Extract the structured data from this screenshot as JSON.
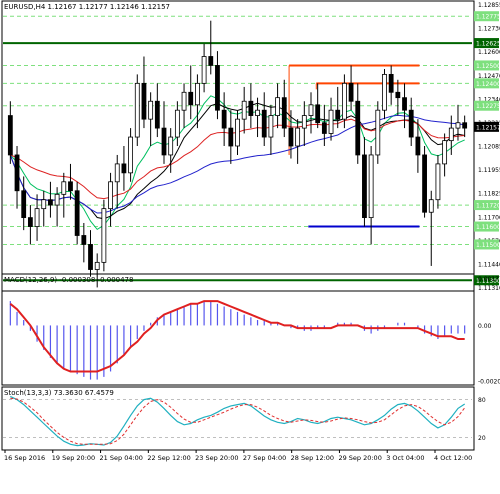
{
  "chart_data": [
    {
      "type": "candlestick",
      "panel": "price",
      "title": "EURUSD,H4  1.12167 1.12177 1.12146 1.12157",
      "x_tick_labels": [
        "16 Sep 2016",
        "19 Sep 20:00",
        "21 Sep 04:00",
        "22 Sep 12:00",
        "23 Sep 20:00",
        "27 Sep 04:00",
        "28 Sep 12:00",
        "29 Sep 20:00",
        "3 Oct 04:00",
        "4 Oct 12:00"
      ],
      "y_tick_labels": [
        "1.12855",
        "1.12730",
        "1.12600",
        "1.12470",
        "1.12340",
        "1.12215",
        "1.12085",
        "1.11955",
        "1.11825",
        "1.11700",
        "1.11570",
        "1.11440",
        "1.11310"
      ],
      "ylim": [
        1.1124,
        1.1286
      ],
      "price_labels": [
        {
          "text": "1.12775",
          "value": 1.12775,
          "color": "#7ee07e"
        },
        {
          "text": "1.12625",
          "value": 1.12625,
          "color": "#006400"
        },
        {
          "text": "1.12500",
          "value": 1.125,
          "color": "#7ee07e"
        },
        {
          "text": "1.12400",
          "value": 1.124,
          "color": "#7ee07e"
        },
        {
          "text": "1.12275",
          "value": 1.12275,
          "color": "#7ee07e"
        },
        {
          "text": "1.12157",
          "value": 1.12157,
          "color": "#000000"
        },
        {
          "text": "1.11720",
          "value": 1.1172,
          "color": "#7ee07e"
        },
        {
          "text": "1.11600",
          "value": 1.116,
          "color": "#7ee07e"
        },
        {
          "text": "1.11500",
          "value": 1.115,
          "color": "#7ee07e"
        },
        {
          "text": "1.11300",
          "value": 1.113,
          "color": "#006400"
        }
      ],
      "horizontal_levels": [
        {
          "value": 1.12625,
          "color": "#006400",
          "style": "solid",
          "x_from": 0,
          "x_to": 1
        },
        {
          "value": 1.113,
          "color": "#006400",
          "style": "solid",
          "x_from": 0,
          "x_to": 1
        },
        {
          "value": 1.12775,
          "color": "#7ee07e",
          "style": "dashed",
          "x_from": 0,
          "x_to": 1
        },
        {
          "value": 1.125,
          "color": "#7ee07e",
          "style": "dashed",
          "x_from": 0,
          "x_to": 1
        },
        {
          "value": 1.124,
          "color": "#7ee07e",
          "style": "dashed",
          "x_from": 0,
          "x_to": 1
        },
        {
          "value": 1.12275,
          "color": "#7ee07e",
          "style": "dashed",
          "x_from": 0,
          "x_to": 1
        },
        {
          "value": 1.1172,
          "color": "#7ee07e",
          "style": "dashed",
          "x_from": 0,
          "x_to": 1
        },
        {
          "value": 1.116,
          "color": "#7ee07e",
          "style": "dashed",
          "x_from": 0,
          "x_to": 1
        },
        {
          "value": 1.115,
          "color": "#7ee07e",
          "style": "dashed",
          "x_from": 0,
          "x_to": 1
        }
      ],
      "rectangle_levels": [
        {
          "top": 1.125,
          "bottom": 1.12,
          "color": "#ff4500",
          "x_from": 0.61,
          "x_to": 0.888
        },
        {
          "top": 1.124,
          "color": "#ff4500",
          "x_from": 0.668,
          "x_to": 0.888
        },
        {
          "value": 1.116,
          "color": "#0000cd",
          "x_from": 0.651,
          "x_to": 0.888
        }
      ],
      "candles": [
        [
          1.1222,
          1.123,
          1.1195,
          1.12
        ],
        [
          1.12,
          1.1205,
          1.117,
          1.118
        ],
        [
          1.118,
          1.1188,
          1.1158,
          1.1165
        ],
        [
          1.1165,
          1.1172,
          1.115,
          1.116
        ],
        [
          1.116,
          1.1178,
          1.1152,
          1.117
        ],
        [
          1.117,
          1.118,
          1.116,
          1.1175
        ],
        [
          1.1175,
          1.1185,
          1.1165,
          1.1172
        ],
        [
          1.1172,
          1.1182,
          1.116,
          1.1178
        ],
        [
          1.1178,
          1.119,
          1.1165,
          1.1185
        ],
        [
          1.1185,
          1.1195,
          1.1175,
          1.118
        ],
        [
          1.118,
          1.1185,
          1.115,
          1.1155
        ],
        [
          1.1155,
          1.1162,
          1.114,
          1.115
        ],
        [
          1.115,
          1.1158,
          1.1132,
          1.1136
        ],
        [
          1.1136,
          1.1145,
          1.1126,
          1.114
        ],
        [
          1.114,
          1.1175,
          1.1135,
          1.117
        ],
        [
          1.117,
          1.119,
          1.116,
          1.1185
        ],
        [
          1.1185,
          1.12,
          1.117,
          1.1195
        ],
        [
          1.1195,
          1.1205,
          1.118,
          1.119
        ],
        [
          1.119,
          1.1215,
          1.1185,
          1.121
        ],
        [
          1.121,
          1.1245,
          1.1205,
          1.124
        ],
        [
          1.124,
          1.1255,
          1.1215,
          1.122
        ],
        [
          1.122,
          1.1235,
          1.1205,
          1.123
        ],
        [
          1.123,
          1.124,
          1.121,
          1.1215
        ],
        [
          1.1215,
          1.123,
          1.1195,
          1.12
        ],
        [
          1.12,
          1.1215,
          1.119,
          1.121
        ],
        [
          1.121,
          1.123,
          1.1205,
          1.1225
        ],
        [
          1.1225,
          1.124,
          1.1215,
          1.1235
        ],
        [
          1.1235,
          1.125,
          1.122,
          1.1228
        ],
        [
          1.1228,
          1.1245,
          1.1215,
          1.124
        ],
        [
          1.124,
          1.1262,
          1.1235,
          1.1255
        ],
        [
          1.1255,
          1.1275,
          1.1245,
          1.125
        ],
        [
          1.125,
          1.1258,
          1.122,
          1.1225
        ],
        [
          1.1225,
          1.1235,
          1.1205,
          1.1215
        ],
        [
          1.1215,
          1.1225,
          1.1195,
          1.1205
        ],
        [
          1.1205,
          1.1225,
          1.12,
          1.122
        ],
        [
          1.122,
          1.1238,
          1.1212,
          1.123
        ],
        [
          1.123,
          1.124,
          1.1215,
          1.1222
        ],
        [
          1.1222,
          1.1232,
          1.121,
          1.1225
        ],
        [
          1.1225,
          1.1235,
          1.1205,
          1.121
        ],
        [
          1.121,
          1.1228,
          1.12,
          1.1222
        ],
        [
          1.1222,
          1.124,
          1.1215,
          1.1232
        ],
        [
          1.1232,
          1.1242,
          1.121,
          1.1215
        ],
        [
          1.1215,
          1.1225,
          1.1198,
          1.1205
        ],
        [
          1.1205,
          1.122,
          1.1195,
          1.1215
        ],
        [
          1.1215,
          1.123,
          1.1205,
          1.1222
        ],
        [
          1.1222,
          1.1235,
          1.1212,
          1.1228
        ],
        [
          1.1228,
          1.124,
          1.1215,
          1.1218
        ],
        [
          1.1218,
          1.1228,
          1.1205,
          1.1212
        ],
        [
          1.1212,
          1.1232,
          1.1208,
          1.1225
        ],
        [
          1.1225,
          1.1238,
          1.1215,
          1.122
        ],
        [
          1.122,
          1.1245,
          1.1215,
          1.124
        ],
        [
          1.124,
          1.125,
          1.1225,
          1.123
        ],
        [
          1.123,
          1.124,
          1.1195,
          1.12
        ],
        [
          1.12,
          1.121,
          1.116,
          1.1165
        ],
        [
          1.1165,
          1.1205,
          1.115,
          1.12
        ],
        [
          1.12,
          1.123,
          1.1195,
          1.1225
        ],
        [
          1.1225,
          1.1248,
          1.122,
          1.1245
        ],
        [
          1.1245,
          1.125,
          1.1228,
          1.1235
        ],
        [
          1.1235,
          1.1242,
          1.1222,
          1.1232
        ],
        [
          1.1232,
          1.124,
          1.1215,
          1.1225
        ],
        [
          1.1225,
          1.1232,
          1.1205,
          1.121
        ],
        [
          1.121,
          1.122,
          1.119,
          1.12
        ],
        [
          1.12,
          1.1205,
          1.1165,
          1.1168
        ],
        [
          1.1168,
          1.118,
          1.1138,
          1.1175
        ],
        [
          1.1175,
          1.12,
          1.117,
          1.1195
        ],
        [
          1.1195,
          1.1212,
          1.1188,
          1.1208
        ],
        [
          1.1208,
          1.1222,
          1.12,
          1.1215
        ],
        [
          1.1215,
          1.1228,
          1.1208,
          1.1218
        ],
        [
          1.1218,
          1.1222,
          1.121,
          1.1215
        ]
      ]
    },
    {
      "type": "bar+line",
      "panel": "macd",
      "title": "MACD(12,26,9) -0.000308 -0.000478",
      "y_tick_labels": [
        "0.001779",
        "0.00",
        "-0.002061"
      ],
      "ylim": [
        -0.0022,
        0.0019
      ],
      "histogram": [
        0.0009,
        0.0005,
        0.0002,
        -0.0002,
        -0.0006,
        -0.0009,
        -0.0012,
        -0.0014,
        -0.0016,
        -0.0017,
        -0.0018,
        -0.0019,
        -0.002,
        -0.002,
        -0.0019,
        -0.0017,
        -0.0014,
        -0.0011,
        -0.0008,
        -0.0005,
        -0.0002,
        0.0001,
        0.0003,
        0.0004,
        0.0005,
        0.0006,
        0.0007,
        0.0008,
        0.0008,
        0.0009,
        0.0009,
        0.0008,
        0.0007,
        0.0006,
        0.0005,
        0.0004,
        0.0003,
        0.0002,
        0.0002,
        0.0001,
        0.0001,
        0.0,
        -0.0001,
        -0.0001,
        -0.0002,
        -0.0002,
        -0.0001,
        -0.0001,
        0.0,
        0.0001,
        0.0001,
        0.0001,
        0.0,
        -0.0002,
        -0.0003,
        -0.0002,
        -0.0001,
        0.0,
        0.0001,
        0.0001,
        0.0,
        -0.0001,
        -0.0003,
        -0.0004,
        -0.0005,
        -0.0004,
        -0.0003,
        -0.0003,
        -0.0003
      ],
      "signal": [
        0.0008,
        0.0006,
        0.0003,
        0.0,
        -0.0004,
        -0.0008,
        -0.0011,
        -0.0014,
        -0.0016,
        -0.0017,
        -0.0017,
        -0.0017,
        -0.0017,
        -0.0017,
        -0.0016,
        -0.0015,
        -0.0013,
        -0.0011,
        -0.0008,
        -0.0006,
        -0.0003,
        -0.0001,
        0.0002,
        0.0004,
        0.0005,
        0.0006,
        0.0007,
        0.0008,
        0.0008,
        0.0009,
        0.0009,
        0.0009,
        0.0008,
        0.0007,
        0.0006,
        0.0005,
        0.0004,
        0.0003,
        0.0002,
        0.0001,
        0.0001,
        0.0,
        0.0,
        -0.0001,
        -0.0001,
        -0.0001,
        -0.0001,
        -0.0001,
        -0.0001,
        0.0,
        0.0,
        0.0,
        0.0,
        -0.0001,
        -0.0001,
        -0.0001,
        -0.0001,
        -0.0001,
        -0.0001,
        -0.0001,
        -0.0001,
        -0.0001,
        -0.0002,
        -0.0003,
        -0.0004,
        -0.0004,
        -0.0004,
        -0.0005,
        -0.0005
      ]
    },
    {
      "type": "line",
      "panel": "stoch",
      "title": "Stoch(13,3,3) 73.3630 67.4579",
      "y_tick_labels": [
        "80",
        "20"
      ],
      "ylim": [
        0,
        100
      ],
      "levels": [
        80,
        20
      ],
      "main": [
        85,
        80,
        72,
        62,
        52,
        42,
        32,
        22,
        14,
        9,
        7,
        8,
        10,
        9,
        8,
        12,
        22,
        38,
        55,
        70,
        80,
        82,
        76,
        66,
        55,
        45,
        40,
        42,
        48,
        52,
        55,
        60,
        66,
        70,
        72,
        74,
        70,
        62,
        54,
        48,
        44,
        42,
        45,
        50,
        48,
        44,
        42,
        45,
        50,
        52,
        50,
        48,
        44,
        40,
        42,
        48,
        55,
        65,
        72,
        74,
        70,
        62,
        52,
        42,
        35,
        40,
        52,
        66,
        73
      ],
      "signal": [
        82,
        81,
        76,
        68,
        59,
        48,
        38,
        28,
        20,
        14,
        10,
        9,
        9,
        9,
        9,
        10,
        15,
        25,
        40,
        55,
        68,
        77,
        80,
        76,
        68,
        58,
        49,
        44,
        44,
        48,
        52,
        56,
        60,
        65,
        69,
        72,
        72,
        68,
        62,
        55,
        50,
        46,
        44,
        46,
        48,
        47,
        45,
        44,
        46,
        49,
        51,
        50,
        48,
        45,
        43,
        44,
        48,
        56,
        64,
        70,
        72,
        69,
        62,
        53,
        45,
        40,
        44,
        53,
        67
      ]
    }
  ]
}
